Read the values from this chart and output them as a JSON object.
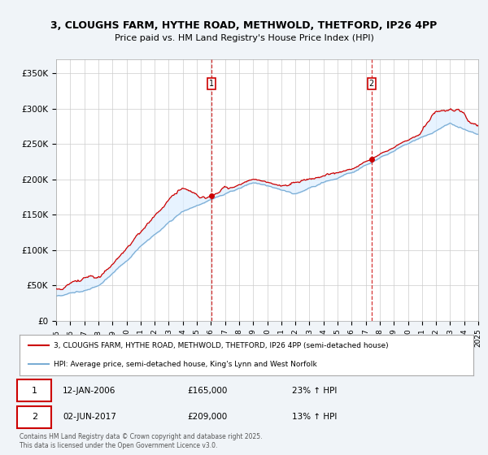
{
  "title_line1": "3, CLOUGHS FARM, HYTHE ROAD, METHWOLD, THETFORD, IP26 4PP",
  "title_line2": "Price paid vs. HM Land Registry's House Price Index (HPI)",
  "ylim": [
    0,
    370000
  ],
  "yticks": [
    0,
    50000,
    100000,
    150000,
    200000,
    250000,
    300000,
    350000
  ],
  "ytick_labels": [
    "£0",
    "£50K",
    "£100K",
    "£150K",
    "£200K",
    "£250K",
    "£300K",
    "£350K"
  ],
  "year_start": 1995,
  "year_end": 2025,
  "sale1_date": 2006.03,
  "sale1_price": 165000,
  "sale1_text": "12-JAN-2006",
  "sale1_pct": "23% ↑ HPI",
  "sale2_date": 2017.42,
  "sale2_price": 209000,
  "sale2_text": "02-JUN-2017",
  "sale2_pct": "13% ↑ HPI",
  "legend_line1": "3, CLOUGHS FARM, HYTHE ROAD, METHWOLD, THETFORD, IP26 4PP (semi-detached house)",
  "legend_line2": "HPI: Average price, semi-detached house, King's Lynn and West Norfolk",
  "footer": "Contains HM Land Registry data © Crown copyright and database right 2025.\nThis data is licensed under the Open Government Licence v3.0.",
  "house_color": "#cc0000",
  "hpi_color": "#7aadd4",
  "fill_color": "#ddeeff",
  "background_color": "#f0f4f8",
  "plot_bg_color": "#ffffff",
  "grid_color": "#cccccc"
}
